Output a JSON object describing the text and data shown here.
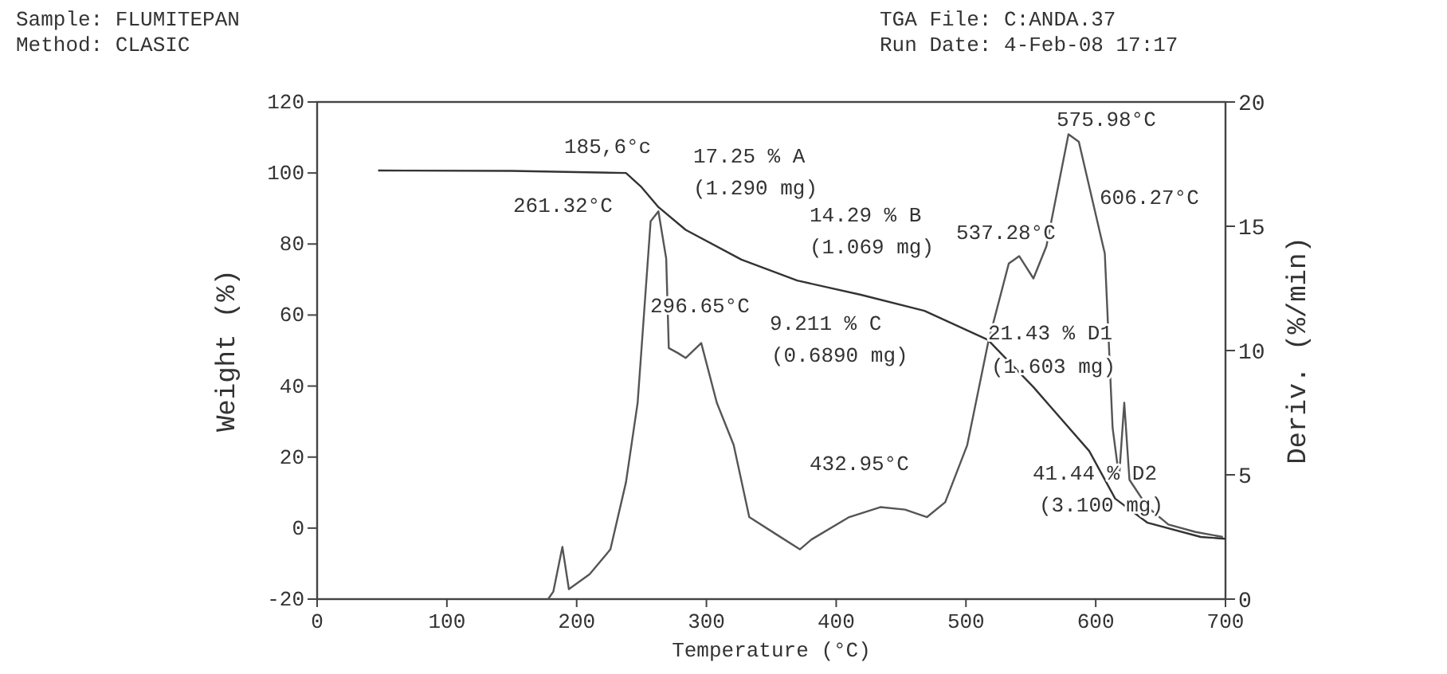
{
  "chart_data": {
    "type": "line",
    "xlabel": "Temperature (°C)",
    "ylabel": "Weight (%)",
    "y2label": "Deriv. (%/min)",
    "xlim": [
      0,
      700
    ],
    "xticks": [
      0,
      100,
      200,
      300,
      400,
      500,
      600,
      700
    ],
    "ylim": [
      -20,
      120
    ],
    "yticks": [
      -20,
      0,
      20,
      40,
      60,
      80,
      100,
      120
    ],
    "y2lim": [
      0,
      20
    ],
    "y2ticks": [
      0,
      5,
      10,
      15,
      20
    ],
    "grid": false,
    "marker": "none",
    "line_style": "solid",
    "series": [
      {
        "color": "#333333",
        "x": [
          47,
          150,
          238,
          250,
          263,
          284,
          327,
          370,
          419,
          468,
          517,
          552,
          595,
          615,
          640,
          681,
          700
        ],
        "values": [
          100.7,
          100.6,
          100,
          96,
          90.4,
          84,
          75.6,
          69.7,
          65.7,
          61.2,
          53,
          39.7,
          21.7,
          8.3,
          1.5,
          -2.5,
          -3
        ]
      },
      {
        "color": "#555555",
        "axis": "y2",
        "x": [
          178,
          182,
          189,
          194,
          210,
          226,
          238,
          247,
          257,
          263,
          269,
          271,
          278,
          284,
          296,
          308,
          321,
          333,
          354,
          372,
          381,
          410,
          434,
          453,
          470,
          484,
          501,
          517,
          533,
          541,
          552,
          562,
          579,
          587,
          603,
          607,
          613,
          618,
          622,
          626,
          640,
          656,
          677,
          698
        ],
        "values": [
          0,
          0.3,
          2.1,
          0.4,
          1.0,
          2.0,
          4.7,
          7.9,
          15.2,
          15.6,
          13.7,
          10.1,
          9.9,
          9.7,
          10.3,
          7.9,
          6.2,
          3.3,
          2.6,
          2.0,
          2.4,
          3.3,
          3.7,
          3.6,
          3.3,
          3.9,
          6.2,
          10.3,
          13.5,
          13.8,
          12.9,
          14.2,
          18.7,
          18.4,
          14.8,
          13.9,
          6.9,
          4.9,
          7.9,
          4.8,
          3.7,
          3.0,
          2.7,
          2.5
        ]
      }
    ],
    "annotations": [
      "Sample: FLUMITEPAN",
      "Method: CLASIC",
      "TGA File: C:ANDA.37",
      "Run Date: 4-Feb-08   17:17",
      "185,6°c",
      "17.25 % A",
      "(1.290 mg)",
      "261.32°C",
      "14.29 % B",
      "(1.069 mg)",
      "537.28°C",
      "606.27°C",
      "296.65°C",
      "9.211 % C",
      "(0.6890 mg)",
      "21.43 % D1",
      "(1.603 mg)",
      "432.95°C",
      "41.44 % D2",
      "(3.100 mg)",
      "575.98°C"
    ]
  }
}
